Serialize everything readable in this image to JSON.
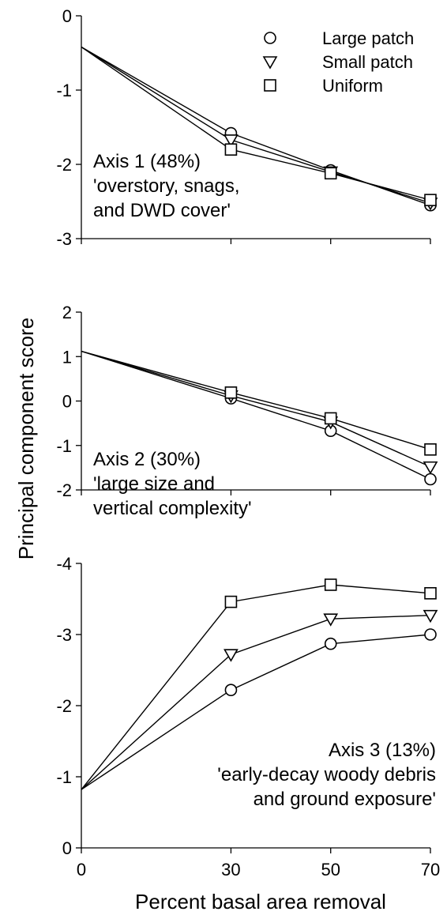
{
  "chart_data": [
    {
      "type": "line",
      "panel_label": [
        "Axis 1 (48%)",
        "'overstory, snags,",
        "and DWD cover'"
      ],
      "x": [
        0,
        30,
        50,
        70
      ],
      "ylim": [
        -3,
        0
      ],
      "y_inverted": false,
      "yticks": [
        0,
        -1,
        -2,
        -3
      ],
      "tick_labels": [
        "0",
        "-1",
        "-2",
        "-3"
      ],
      "series": [
        {
          "name": "Large patch",
          "marker": "circle",
          "values": [
            -0.42,
            -1.58,
            -2.08,
            -2.55
          ]
        },
        {
          "name": "Small patch",
          "marker": "triangle-down",
          "values": [
            -0.42,
            -1.67,
            -2.1,
            -2.52
          ]
        },
        {
          "name": "Uniform",
          "marker": "square",
          "values": [
            -0.42,
            -1.8,
            -2.12,
            -2.48
          ]
        }
      ]
    },
    {
      "type": "line",
      "panel_label": [
        "Axis 2 (30%)",
        "'large size and",
        "vertical complexity'"
      ],
      "x": [
        0,
        30,
        50,
        70
      ],
      "ylim": [
        -2,
        2
      ],
      "y_inverted": false,
      "yticks": [
        2,
        1,
        0,
        -1,
        -2
      ],
      "tick_labels": [
        "2",
        "1",
        "0",
        "-1",
        "-2"
      ],
      "series": [
        {
          "name": "Large patch",
          "marker": "circle",
          "values": [
            1.12,
            0.06,
            -0.67,
            -1.76
          ]
        },
        {
          "name": "Small patch",
          "marker": "triangle-down",
          "values": [
            1.12,
            0.12,
            -0.47,
            -1.48
          ]
        },
        {
          "name": "Uniform",
          "marker": "square",
          "values": [
            1.12,
            0.19,
            -0.39,
            -1.09
          ]
        }
      ]
    },
    {
      "type": "line",
      "panel_label": [
        "Axis 3 (13%)",
        "'early-decay woody debris",
        "and ground exposure'"
      ],
      "x": [
        0,
        30,
        50,
        70
      ],
      "ylim": [
        0,
        -4
      ],
      "y_inverted": true,
      "yticks": [
        -4,
        -3,
        -2,
        -1,
        0
      ],
      "tick_labels": [
        "-4",
        "-3",
        "-2",
        "-1",
        "0"
      ],
      "series": [
        {
          "name": "Large patch",
          "marker": "circle",
          "values": [
            -0.82,
            -2.22,
            -2.87,
            -3.0
          ]
        },
        {
          "name": "Small patch",
          "marker": "triangle-down",
          "values": [
            -0.82,
            -2.72,
            -3.22,
            -3.27
          ]
        },
        {
          "name": "Uniform",
          "marker": "square",
          "values": [
            -0.82,
            -3.46,
            -3.7,
            -3.58
          ]
        }
      ]
    }
  ],
  "legend": {
    "placement": "top-right of top panel",
    "entries": [
      {
        "label": "Large patch",
        "marker": "circle"
      },
      {
        "label": "Small patch",
        "marker": "triangle-down"
      },
      {
        "label": "Uniform",
        "marker": "square"
      }
    ]
  },
  "x_axis": {
    "ticks": [
      0,
      30,
      50,
      70
    ],
    "tick_labels": [
      "0",
      "30",
      "50",
      "70"
    ],
    "xlim": [
      0,
      70
    ],
    "label": "Percent basal area removal"
  },
  "y_axis_label": "Principal component score",
  "colors": {
    "line": "#000000",
    "marker_fill": "#ffffff",
    "background": "#ffffff"
  }
}
